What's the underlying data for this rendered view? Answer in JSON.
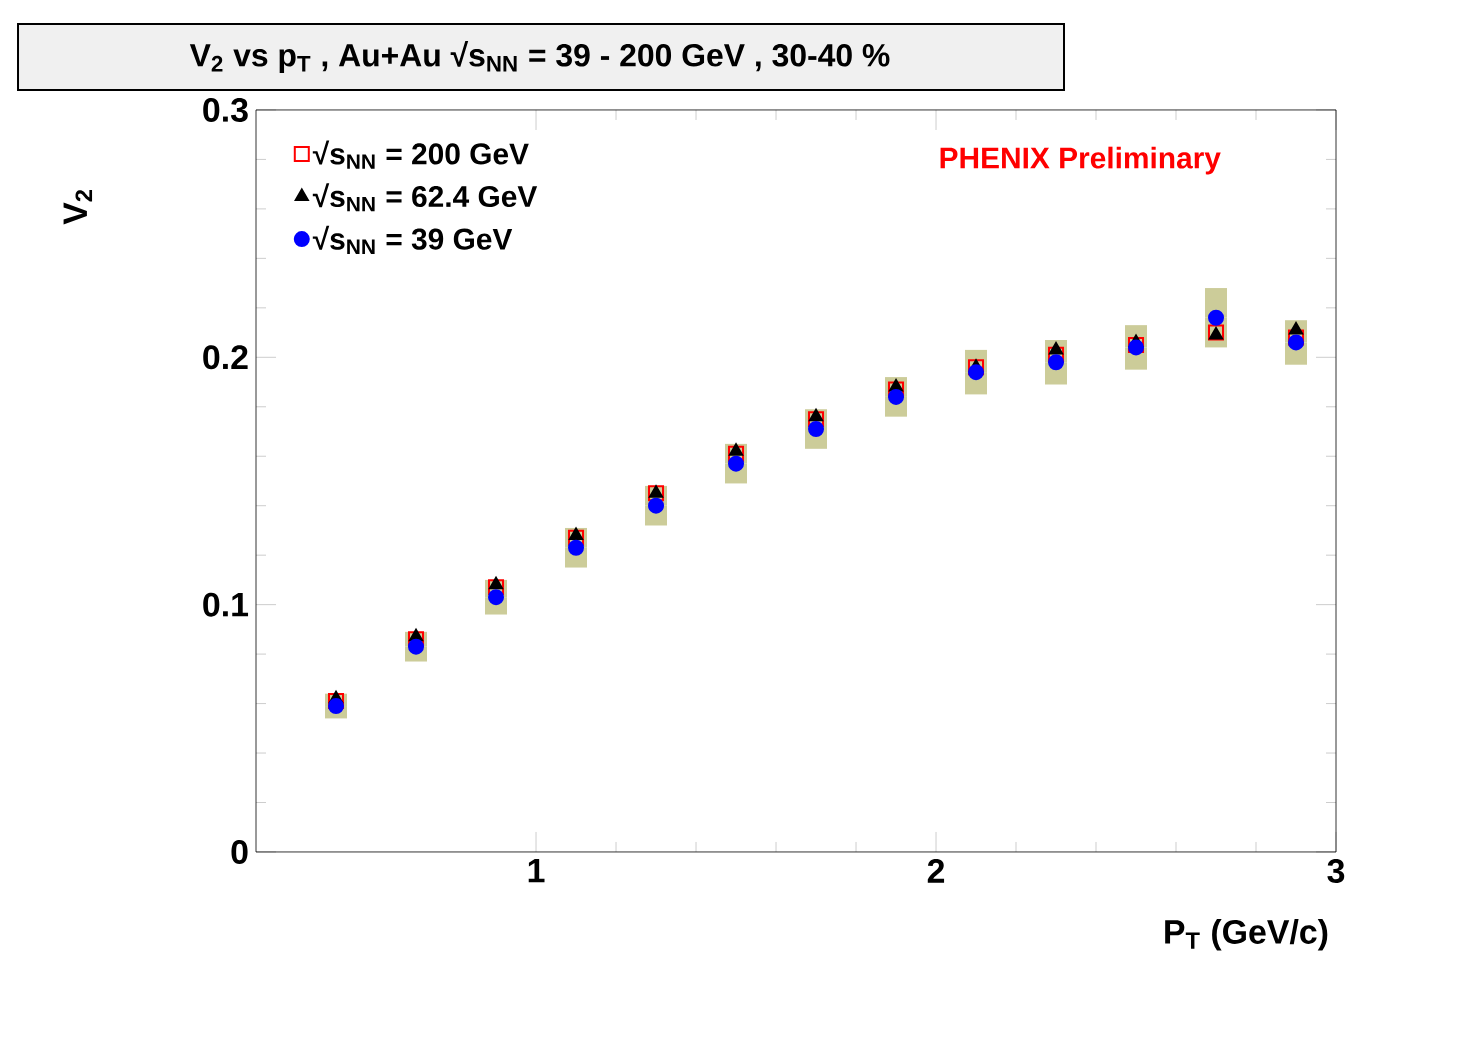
{
  "chart_data": {
    "type": "scatter",
    "title": "V$_{2}$ vs p$_{T}$ , Au+Au  √s$_{NN}$ = 39 - 200 GeV , 30-40 %",
    "xlabel": "P$_{T}$ (GeV/c)",
    "ylabel": "V$_{2}$",
    "x": [
      0.5,
      0.7,
      0.9,
      1.1,
      1.3,
      1.5,
      1.7,
      1.9,
      2.1,
      2.3,
      2.5,
      2.7,
      2.9
    ],
    "series": [
      {
        "name": "√s$_{NN}$ = 200 GeV",
        "color": "#ff0000",
        "marker": "square",
        "values": [
          0.061,
          0.086,
          0.107,
          0.127,
          0.145,
          0.161,
          0.175,
          0.187,
          0.196,
          0.201,
          0.205,
          0.21,
          0.208
        ]
      },
      {
        "name": "√s$_{NN}$ = 62.4  GeV",
        "color": "#000000",
        "marker": "triangle",
        "values": [
          0.062,
          0.087,
          0.108,
          0.128,
          0.145,
          0.162,
          0.176,
          0.188,
          0.196,
          0.203,
          0.206,
          0.209,
          0.211
        ]
      },
      {
        "name": "√s$_{NN}$ = 39  GeV",
        "color": "#0000ff",
        "marker": "circle",
        "values": [
          0.059,
          0.083,
          0.103,
          0.123,
          0.14,
          0.157,
          0.171,
          0.184,
          0.194,
          0.198,
          0.204,
          0.216,
          0.206
        ],
        "errors": [
          0.005,
          0.006,
          0.007,
          0.008,
          0.008,
          0.008,
          0.008,
          0.008,
          0.009,
          0.009,
          0.009,
          0.012,
          0.009
        ]
      }
    ],
    "xlim": [
      0.3,
      3.0
    ],
    "ylim": [
      0,
      0.3
    ],
    "xticks": [
      1,
      2,
      3
    ],
    "yticks": [
      0,
      0.1,
      0.2,
      0.3
    ],
    "legend": "top left",
    "grid": false,
    "annotations": [
      "PHENIX Preliminary"
    ]
  }
}
